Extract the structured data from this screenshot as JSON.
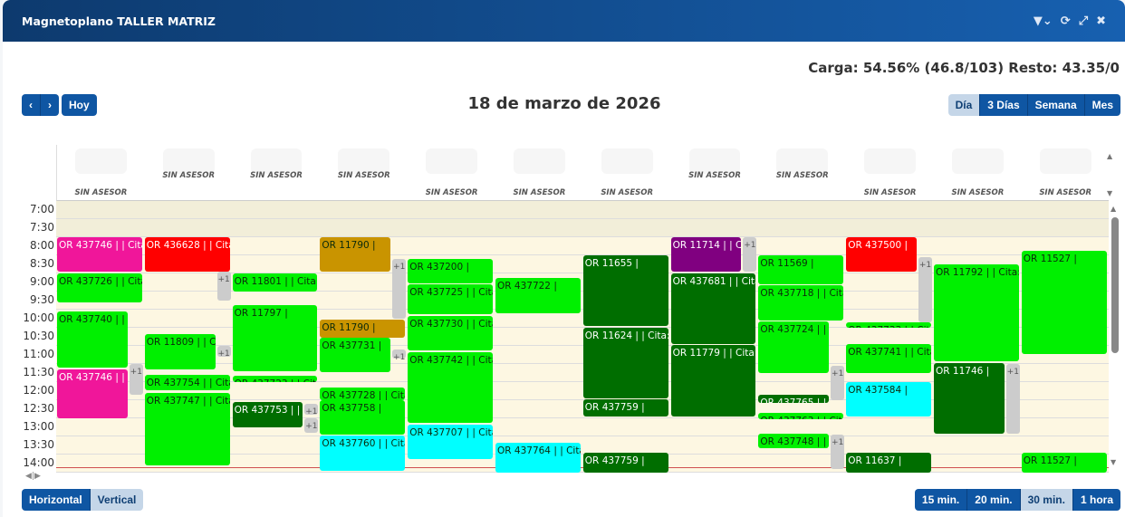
{
  "window": {
    "title": "Magnetoplano TALLER MATRIZ",
    "icons": [
      "filter-icon",
      "chevron-down-icon",
      "refresh-icon",
      "expand-icon",
      "tools-icon"
    ]
  },
  "summary": "Carga: 54.56% (46.8/103) Resto: 43.35/0",
  "nav": {
    "prev": "‹",
    "next": "›",
    "today": "Hoy"
  },
  "date_title": "18 de marzo de 2026",
  "views": [
    {
      "label": "Día",
      "active": true
    },
    {
      "label": "3 Días"
    },
    {
      "label": "Semana"
    },
    {
      "label": "Mes"
    }
  ],
  "orientation": [
    {
      "label": "Horizontal",
      "active": true
    },
    {
      "label": "Vertical"
    }
  ],
  "slots": [
    {
      "label": "15 min."
    },
    {
      "label": "20 min."
    },
    {
      "label": "30 min.",
      "active": true
    },
    {
      "label": "1 hora"
    }
  ],
  "columns": [
    {
      "label": "SIN ASESOR",
      "low": true
    },
    {
      "label": "SIN ASESOR"
    },
    {
      "label": "SIN ASESOR"
    },
    {
      "label": "SIN ASESOR"
    },
    {
      "label": "SIN ASESOR",
      "low": true
    },
    {
      "label": "SIN ASESOR",
      "low": true
    },
    {
      "label": "SIN ASESOR",
      "low": true
    },
    {
      "label": "SIN ASESOR"
    },
    {
      "label": "SIN ASESOR"
    },
    {
      "label": "SIN ASESOR",
      "low": true
    },
    {
      "label": "SIN ASESOR",
      "low": true
    },
    {
      "label": "SIN ASESOR",
      "low": true
    }
  ],
  "times": [
    "7:00",
    "7:30",
    "8:00",
    "8:30",
    "9:00",
    "9:30",
    "10:00",
    "10:30",
    "11:00",
    "11:30",
    "12:00",
    "12:30",
    "13:00",
    "13:30",
    "14:00"
  ],
  "colors": {
    "green": "#00f000",
    "dark": "#006e00",
    "pink": "#f0169a",
    "red": "#ff0000",
    "gold": "#c99400",
    "cyan": "#00ffff",
    "purple": "#800080"
  },
  "events": [
    {
      "col": 0,
      "s": 8.0,
      "e": 8.95,
      "c": "pink",
      "t": "OR 437746 | | Cita"
    },
    {
      "col": 0,
      "s": 9.0,
      "e": 9.8,
      "c": "green",
      "t": "OR 437726 | | Cita"
    },
    {
      "col": 0,
      "s": 10.05,
      "e": 11.6,
      "c": "green",
      "t": "OR 437740 | | Cita"
    },
    {
      "col": 0,
      "s": 11.65,
      "e": 13.0,
      "c": "pink",
      "t": "OR 437746 | | Cita"
    },
    {
      "col": 1,
      "s": 8.0,
      "e": 8.95,
      "c": "red",
      "t": "OR 436628 | | Cita"
    },
    {
      "col": 1,
      "s": 10.68,
      "e": 11.65,
      "c": "green",
      "t": "OR 11809 | | Cita: 1"
    },
    {
      "col": 1,
      "s": 11.8,
      "e": 12.22,
      "c": "green",
      "t": "OR 437754 | | Cita"
    },
    {
      "col": 1,
      "s": 12.3,
      "e": 14.3,
      "c": "green",
      "t": "OR 437747 | | Cita"
    },
    {
      "col": 2,
      "s": 9.0,
      "e": 9.5,
      "c": "green",
      "t": "OR 11801 | | Cita: 1"
    },
    {
      "col": 2,
      "s": 9.88,
      "e": 11.7,
      "c": "green",
      "t": "OR 11797 |"
    },
    {
      "col": 2,
      "s": 11.83,
      "e": 12.0,
      "c": "green",
      "t": "OR 437723 | | Cita"
    },
    {
      "col": 2,
      "s": 12.55,
      "e": 13.25,
      "c": "dark",
      "t": "OR 437753 | | Cita"
    },
    {
      "col": 3,
      "s": 8.0,
      "e": 8.95,
      "c": "gold",
      "t": "OR 11790 |"
    },
    {
      "col": 3,
      "s": 10.28,
      "e": 10.78,
      "c": "gold",
      "t": "OR 11790 |"
    },
    {
      "col": 3,
      "s": 10.78,
      "e": 11.72,
      "c": "green",
      "t": "OR 437731 |"
    },
    {
      "col": 3,
      "s": 12.15,
      "e": 12.5,
      "c": "green",
      "t": "OR 437728 | | Cita"
    },
    {
      "col": 3,
      "s": 12.5,
      "e": 13.45,
      "c": "green",
      "t": "OR 437758 |"
    },
    {
      "col": 3,
      "s": 13.48,
      "e": 14.45,
      "c": "cyan",
      "t": "OR 437760 | | Cita"
    },
    {
      "col": 4,
      "s": 8.6,
      "e": 9.28,
      "c": "green",
      "t": "OR 437200 |"
    },
    {
      "col": 4,
      "s": 9.3,
      "e": 10.12,
      "c": "green",
      "t": "OR 437725 | | Cita"
    },
    {
      "col": 4,
      "s": 10.18,
      "e": 11.12,
      "c": "green",
      "t": "OR 437730 | | Cita"
    },
    {
      "col": 4,
      "s": 11.18,
      "e": 13.12,
      "c": "green",
      "t": "OR 437742 | | Cita"
    },
    {
      "col": 4,
      "s": 13.18,
      "e": 14.12,
      "c": "cyan",
      "t": "OR 437707 | | Cita"
    },
    {
      "col": 5,
      "s": 9.12,
      "e": 10.1,
      "c": "green",
      "t": "OR 437722 |"
    },
    {
      "col": 5,
      "s": 13.68,
      "e": 14.5,
      "c": "cyan",
      "t": "OR 437764 | | Cita"
    },
    {
      "col": 6,
      "s": 8.5,
      "e": 10.45,
      "c": "dark",
      "t": "OR 11655 |"
    },
    {
      "col": 6,
      "s": 10.5,
      "e": 12.45,
      "c": "dark",
      "t": "OR 11624 | | Cita: 1"
    },
    {
      "col": 6,
      "s": 12.48,
      "e": 12.95,
      "c": "dark",
      "t": "OR 437759 |"
    },
    {
      "col": 6,
      "s": 13.95,
      "e": 14.5,
      "c": "dark",
      "t": "OR 437759 |"
    },
    {
      "col": 7,
      "s": 8.0,
      "e": 8.95,
      "c": "purple",
      "t": "OR 11714 | | Cita"
    },
    {
      "col": 7,
      "s": 9.0,
      "e": 10.95,
      "c": "dark",
      "t": "OR 437681 | | Cita"
    },
    {
      "col": 7,
      "s": 10.98,
      "e": 12.95,
      "c": "dark",
      "t": "OR 11779 | | Cita: 1"
    },
    {
      "col": 8,
      "s": 8.5,
      "e": 9.3,
      "c": "green",
      "t": "OR 11569 |"
    },
    {
      "col": 8,
      "s": 9.33,
      "e": 10.3,
      "c": "green",
      "t": "OR 437718 | | Cita"
    },
    {
      "col": 8,
      "s": 10.33,
      "e": 11.75,
      "c": "green",
      "t": "OR 437724 | | Cita"
    },
    {
      "col": 8,
      "s": 12.35,
      "e": 12.58,
      "c": "dark",
      "t": "OR 437765 | | Cita"
    },
    {
      "col": 8,
      "s": 12.85,
      "e": 13.02,
      "c": "green",
      "t": "OR 437763 | | Cita"
    },
    {
      "col": 8,
      "s": 13.43,
      "e": 13.82,
      "c": "green",
      "t": "OR 437748 | | Cita"
    },
    {
      "col": 9,
      "s": 8.0,
      "e": 8.95,
      "c": "red",
      "t": "OR 437500 |"
    },
    {
      "col": 9,
      "s": 10.35,
      "e": 10.5,
      "c": "green",
      "t": "OR 437733 | | Cita"
    },
    {
      "col": 9,
      "s": 10.95,
      "e": 11.75,
      "c": "green",
      "t": "OR 437741 | | Cita"
    },
    {
      "col": 9,
      "s": 12.0,
      "e": 12.95,
      "c": "cyan",
      "t": "OR 437584 |"
    },
    {
      "col": 9,
      "s": 13.95,
      "e": 14.5,
      "c": "dark",
      "t": "OR 11637 |"
    },
    {
      "col": 10,
      "s": 8.75,
      "e": 11.42,
      "c": "green",
      "t": "OR 11792 | | Cita: 1"
    },
    {
      "col": 10,
      "s": 11.48,
      "e": 13.42,
      "c": "dark",
      "t": "OR 11746 |"
    },
    {
      "col": 11,
      "s": 8.38,
      "e": 11.22,
      "c": "green",
      "t": "OR 11527 |"
    },
    {
      "col": 11,
      "s": 13.95,
      "e": 14.5,
      "c": "green",
      "t": "OR 11527 |"
    }
  ],
  "more": [
    {
      "col": 0,
      "s": 11.5,
      "e": 12.35,
      "t": "+1"
    },
    {
      "col": 1,
      "s": 8.95,
      "e": 9.75,
      "t": "+1"
    },
    {
      "col": 1,
      "s": 11.0,
      "e": 11.3,
      "t": "+1"
    },
    {
      "col": 2,
      "s": 12.6,
      "e": 12.9,
      "t": "+1"
    },
    {
      "col": 2,
      "s": 13.0,
      "e": 13.4,
      "t": "+1"
    },
    {
      "col": 3,
      "s": 8.6,
      "e": 10.25,
      "t": "+1"
    },
    {
      "col": 3,
      "s": 11.1,
      "e": 11.35,
      "t": "+1"
    },
    {
      "col": 7,
      "s": 8.0,
      "e": 8.95,
      "t": "+1"
    },
    {
      "col": 8,
      "s": 11.55,
      "e": 12.5,
      "t": "+1"
    },
    {
      "col": 8,
      "s": 13.45,
      "e": 14.4,
      "t": "+1"
    },
    {
      "col": 9,
      "s": 8.55,
      "e": 10.35,
      "t": "+1"
    },
    {
      "col": 10,
      "s": 11.5,
      "e": 13.42,
      "t": "+1"
    }
  ]
}
